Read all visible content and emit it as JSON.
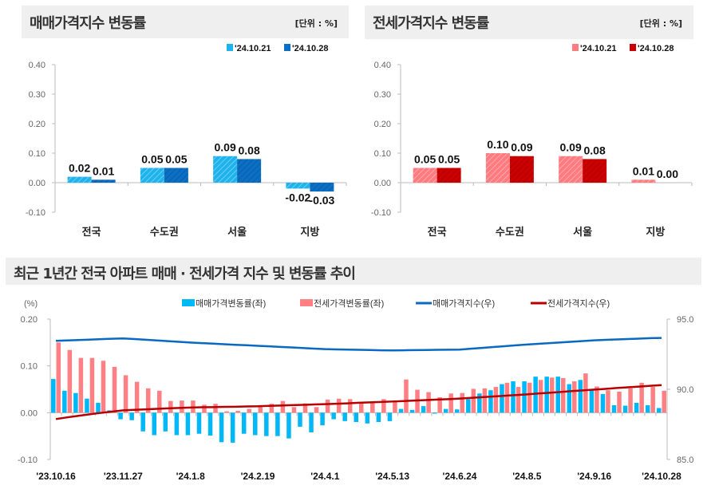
{
  "colors": {
    "sale_light": "#1fb3ec",
    "sale_dark": "#0b6fc4",
    "jeonse_light": "#ff7b7f",
    "jeonse_dark": "#cc0000",
    "sale_bar": "#00b8f5",
    "jeonse_bar": "#ff8084",
    "sale_line": "#0a68c0",
    "jeonse_line": "#b50000"
  },
  "chart_data": [
    {
      "type": "bar",
      "title": "매매가격지수 변동률",
      "unit": "[단위 : %]",
      "categories": [
        "전국",
        "수도권",
        "서울",
        "지방"
      ],
      "series": [
        {
          "name": "'24.10.21",
          "values": [
            0.02,
            0.05,
            0.09,
            -0.02
          ]
        },
        {
          "name": "'24.10.28",
          "values": [
            0.01,
            0.05,
            0.08,
            -0.03
          ]
        }
      ],
      "labels": [
        [
          "0.02",
          "0.05",
          "0.09",
          "-0.02"
        ],
        [
          "0.01",
          "0.05",
          "0.08",
          "-0.03"
        ]
      ],
      "ylim": [
        -0.1,
        0.4
      ],
      "yticks": [
        "0.40",
        "0.30",
        "0.20",
        "0.10",
        "0.00",
        "-0.10"
      ],
      "legend": "top-right"
    },
    {
      "type": "bar",
      "title": "전세가격지수 변동률",
      "unit": "[단위 : %]",
      "categories": [
        "전국",
        "수도권",
        "서울",
        "지방"
      ],
      "series": [
        {
          "name": "'24.10.21",
          "values": [
            0.05,
            0.1,
            0.09,
            0.01
          ]
        },
        {
          "name": "'24.10.28",
          "values": [
            0.05,
            0.09,
            0.08,
            0.0
          ]
        }
      ],
      "labels": [
        [
          "0.05",
          "0.10",
          "0.09",
          "0.01"
        ],
        [
          "0.05",
          "0.09",
          "0.08",
          "0.00"
        ]
      ],
      "ylim": [
        -0.1,
        0.4
      ],
      "yticks": [
        "0.40",
        "0.30",
        "0.20",
        "0.10",
        "0.00",
        "-0.10"
      ],
      "legend": "top-right"
    },
    {
      "type": "bar+line",
      "title": "최근 1년간 전국 아파트 매매 · 전세가격 지수 및 변동률 추이",
      "ylabel_left": "(%)",
      "ylim_left": [
        -0.1,
        0.2
      ],
      "yticks_left": [
        "0.20",
        "0.10",
        "0.00",
        "-0.10"
      ],
      "ylim_right": [
        85.0,
        95.0
      ],
      "yticks_right": [
        "95.0",
        "90.0",
        "85.0"
      ],
      "xticks": [
        "'23.10.16",
        "'23.11.27",
        "'24.1.8",
        "'24.2.19",
        "'24.4.1",
        "'24.5.13",
        "'24.6.24",
        "'24.8.5",
        "'24.9.16",
        "'24.10.28"
      ],
      "xtick_every_weeks": 6,
      "legend": [
        "매매가격변동률(좌)",
        "전세가격변동률(좌)",
        "매매가격지수(우)",
        "전세가격지수(우)"
      ],
      "sale_change": [
        0.072,
        0.047,
        0.042,
        0.03,
        0.021,
        0.005,
        -0.014,
        -0.016,
        -0.04,
        -0.048,
        -0.04,
        -0.048,
        -0.048,
        -0.045,
        -0.049,
        -0.063,
        -0.064,
        -0.045,
        -0.048,
        -0.05,
        -0.05,
        -0.055,
        -0.03,
        -0.042,
        -0.027,
        -0.014,
        -0.018,
        -0.02,
        -0.023,
        -0.02,
        -0.018,
        0.008,
        0.006,
        0.014,
        -0.002,
        0.008,
        0.007,
        0.029,
        0.041,
        0.048,
        0.061,
        0.067,
        0.067,
        0.077,
        0.077,
        0.077,
        0.061,
        0.07,
        0.048,
        0.04,
        0.016,
        0.015,
        0.021,
        0.016,
        0.01
      ],
      "jeonse_change": [
        0.15,
        0.134,
        0.117,
        0.117,
        0.111,
        0.098,
        0.08,
        0.066,
        0.052,
        0.047,
        0.025,
        0.026,
        0.026,
        0.017,
        0.019,
        0.003,
        0.004,
        0.008,
        0.012,
        0.019,
        0.025,
        0.012,
        0.02,
        0.012,
        0.028,
        0.03,
        0.029,
        0.022,
        0.023,
        0.029,
        0.024,
        0.071,
        0.049,
        0.044,
        0.033,
        0.041,
        0.042,
        0.051,
        0.052,
        0.055,
        0.064,
        0.055,
        0.064,
        0.07,
        0.075,
        0.074,
        0.067,
        0.084,
        0.056,
        0.048,
        0.045,
        0.052,
        0.064,
        0.055,
        0.047
      ],
      "sale_index": [
        93.45,
        93.48,
        93.51,
        93.54,
        93.57,
        93.6,
        93.62,
        93.58,
        93.53,
        93.48,
        93.43,
        93.38,
        93.33,
        93.29,
        93.25,
        93.21,
        93.17,
        93.14,
        93.1,
        93.06,
        93.02,
        92.98,
        92.94,
        92.9,
        92.86,
        92.84,
        92.83,
        92.81,
        92.8,
        92.78,
        92.77,
        92.78,
        92.79,
        92.8,
        92.81,
        92.82,
        92.83,
        92.89,
        92.95,
        93.01,
        93.07,
        93.13,
        93.19,
        93.24,
        93.29,
        93.34,
        93.39,
        93.44,
        93.49,
        93.52,
        93.55,
        93.58,
        93.61,
        93.64,
        93.66
      ],
      "jeonse_index": [
        87.88,
        88.0,
        88.11,
        88.22,
        88.32,
        88.41,
        88.5,
        88.54,
        88.57,
        88.61,
        88.64,
        88.67,
        88.7,
        88.72,
        88.73,
        88.75,
        88.76,
        88.78,
        88.79,
        88.82,
        88.84,
        88.87,
        88.89,
        88.92,
        88.94,
        88.97,
        89.0,
        89.04,
        89.07,
        89.1,
        89.13,
        89.16,
        89.2,
        89.23,
        89.27,
        89.3,
        89.34,
        89.39,
        89.44,
        89.49,
        89.54,
        89.59,
        89.64,
        89.7,
        89.75,
        89.81,
        89.87,
        89.92,
        89.98,
        90.03,
        90.09,
        90.14,
        90.19,
        90.25,
        90.3
      ]
    }
  ]
}
